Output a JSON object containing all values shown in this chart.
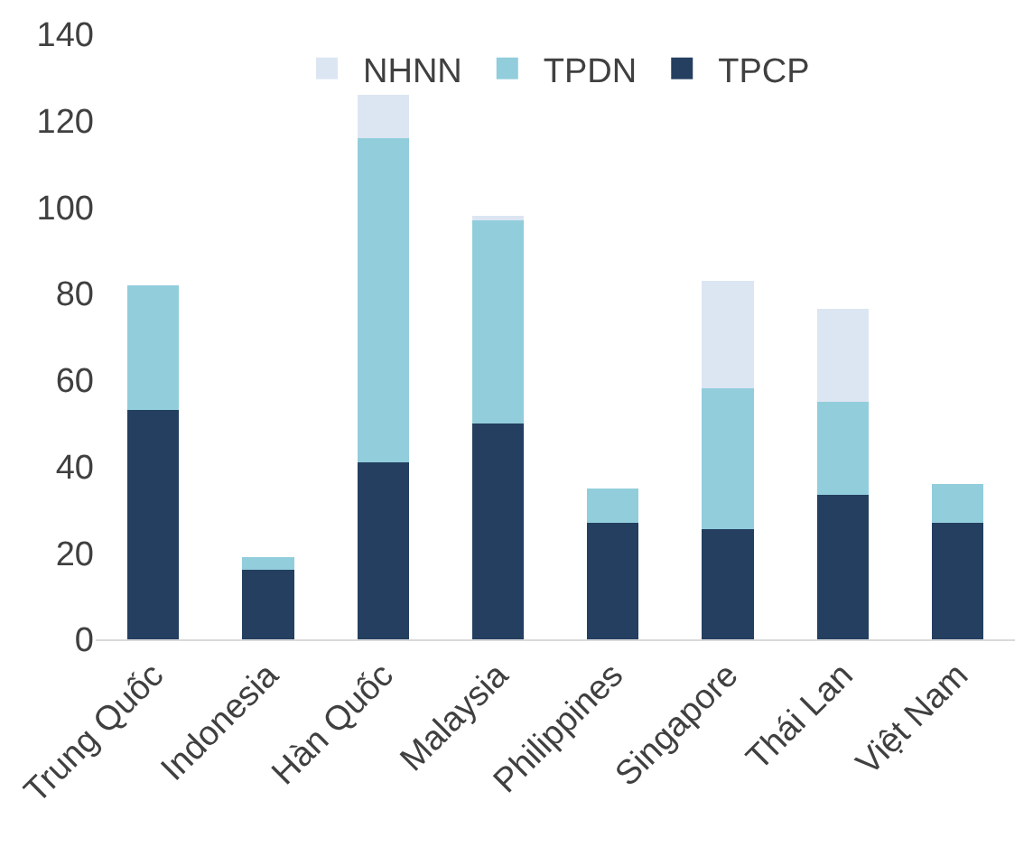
{
  "chart_data": {
    "type": "bar",
    "stacked": true,
    "categories": [
      "Trung Quốc",
      "Indonesia",
      "Hàn Quốc",
      "Malaysia",
      "Philippines",
      "Singapore",
      "Thái Lan",
      "Việt Nam"
    ],
    "series": [
      {
        "name": "TPCP",
        "color": "#243f60",
        "values": [
          53,
          16,
          41,
          50,
          27,
          25.5,
          33.5,
          27
        ]
      },
      {
        "name": "TPDN",
        "color": "#92cddc",
        "values": [
          29,
          3,
          75,
          47,
          8,
          32.5,
          21.5,
          9
        ]
      },
      {
        "name": "NHNN",
        "color": "#dce6f2",
        "values": [
          0,
          0,
          10,
          1,
          0,
          25,
          21.5,
          0
        ]
      }
    ],
    "ylim": [
      0,
      140
    ],
    "yticks": [
      0,
      20,
      40,
      60,
      80,
      100,
      120,
      140
    ],
    "grid": false,
    "legend": "top"
  }
}
